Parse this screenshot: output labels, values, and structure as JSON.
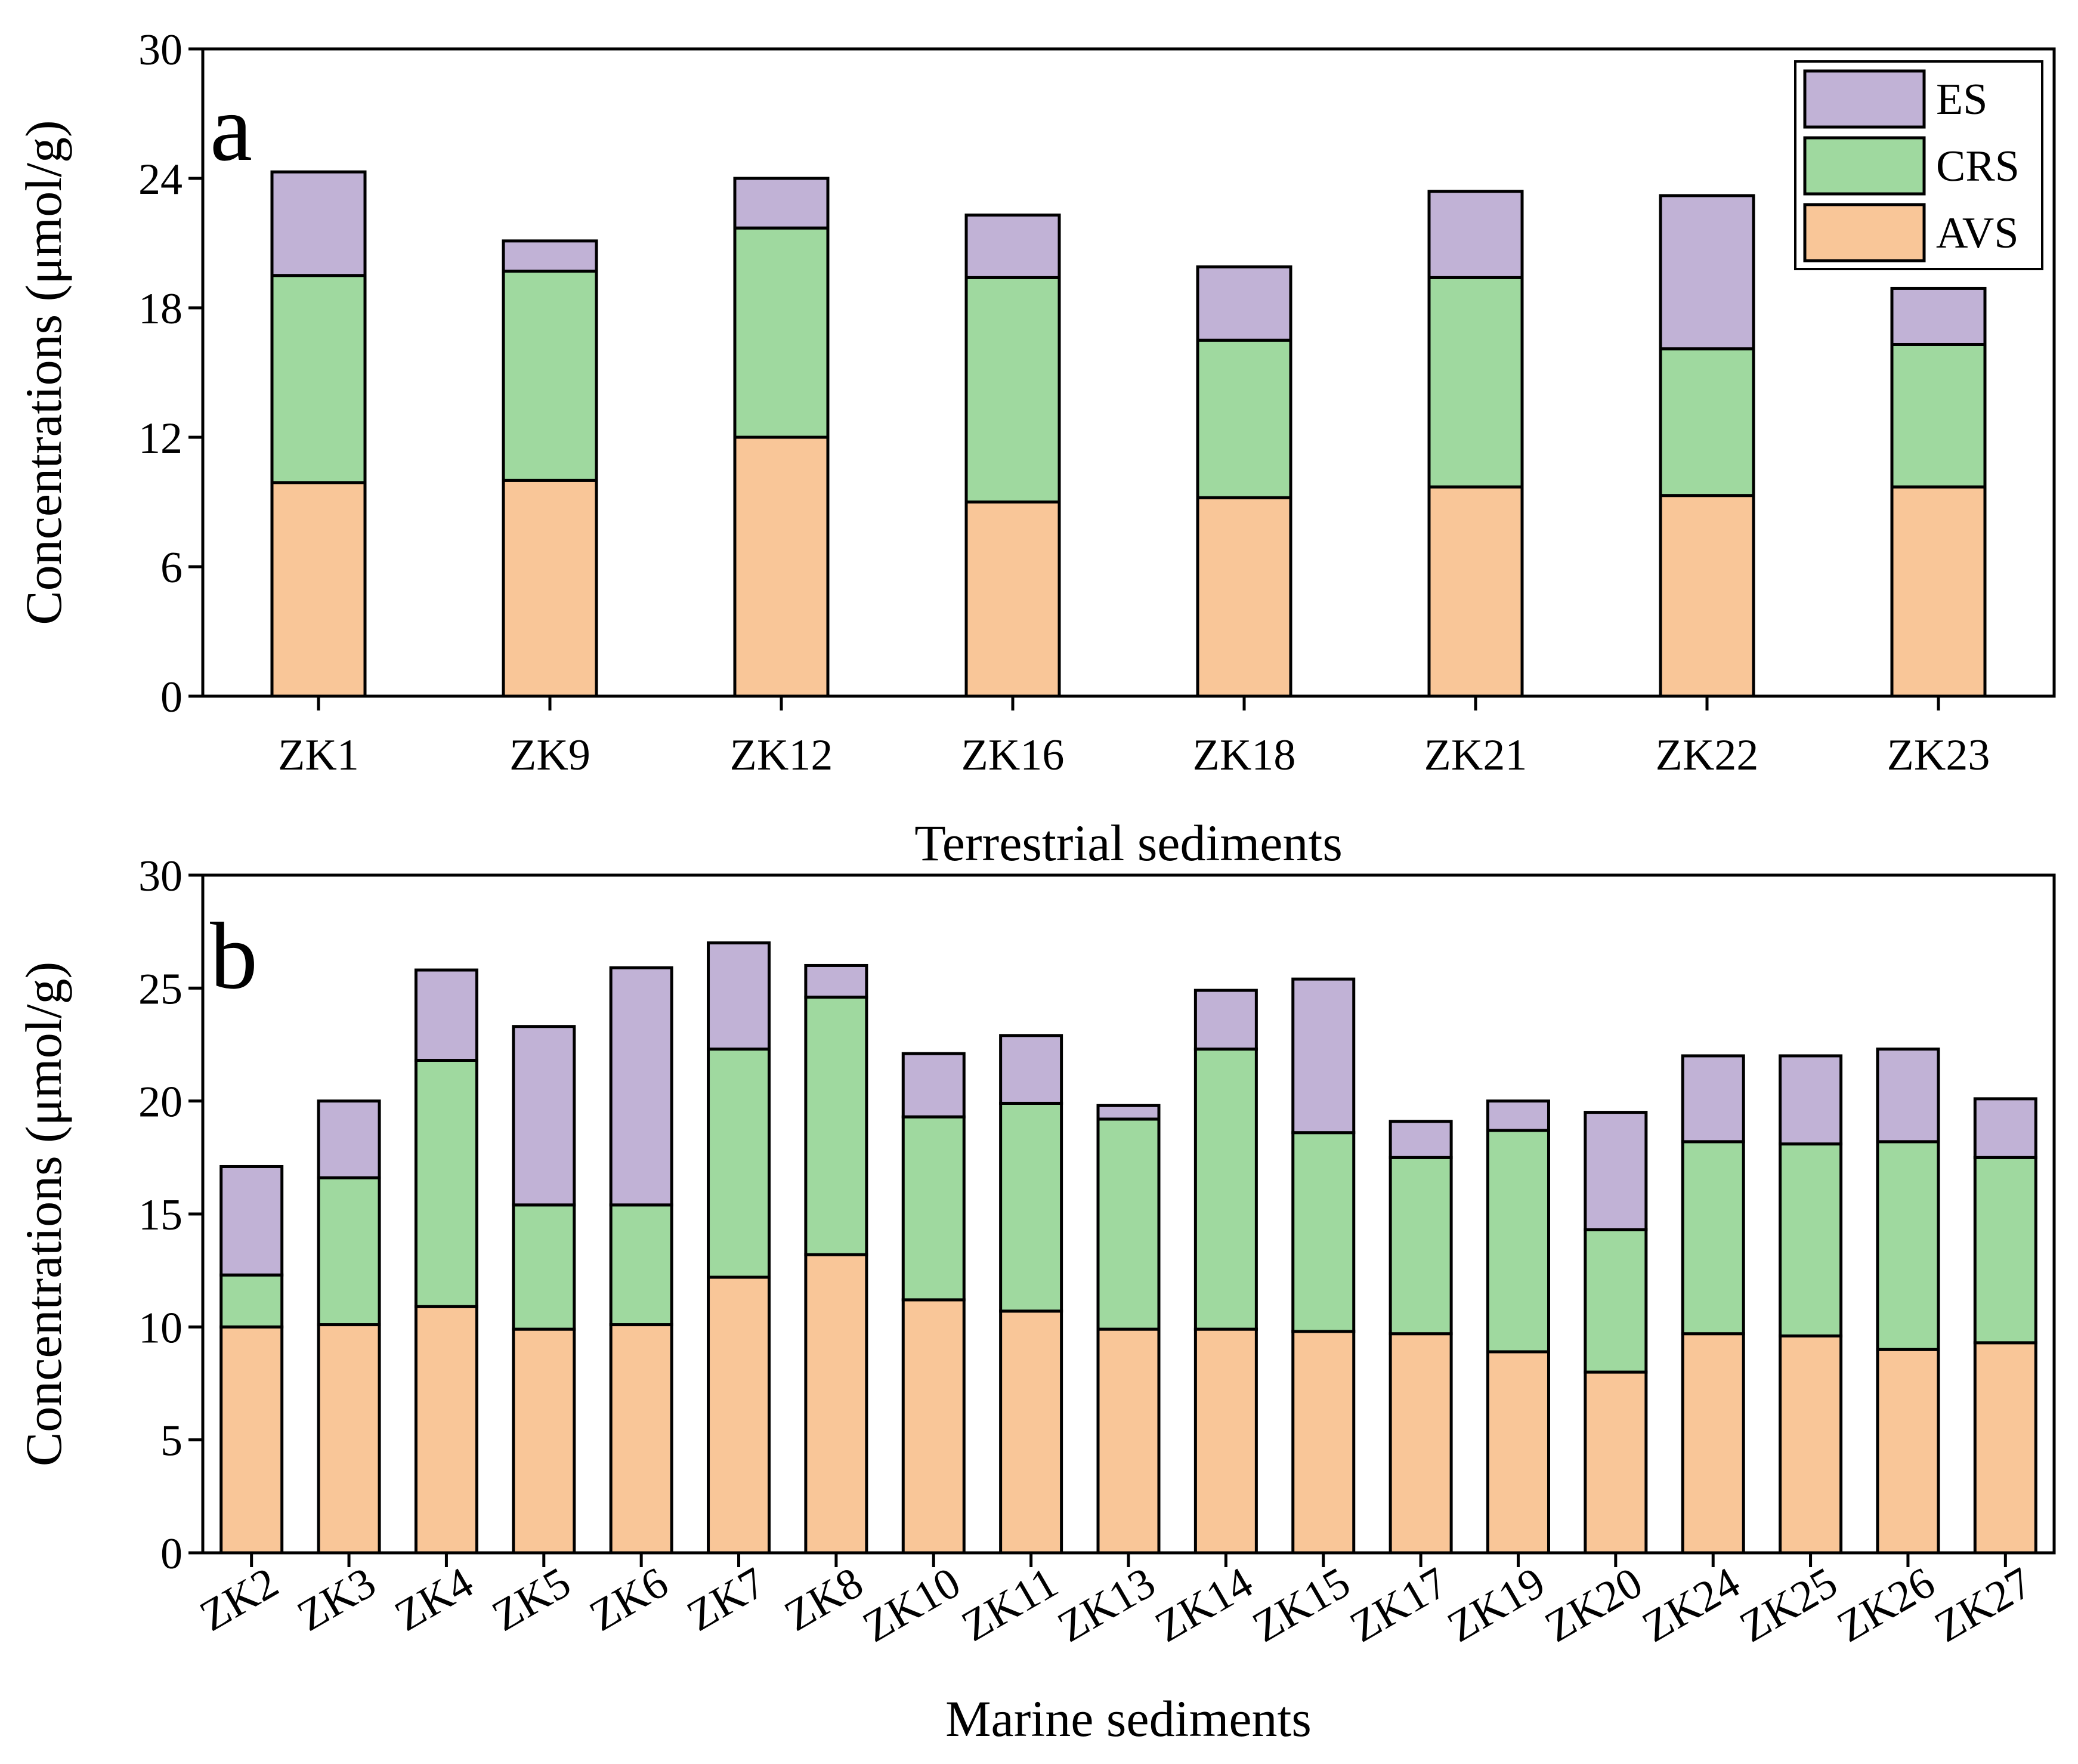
{
  "chart_data": [
    {
      "type": "bar",
      "stacked": true,
      "panel_label": "a",
      "title": "",
      "xlabel": "Terrestrial sediments",
      "ylabel": "Concentrations (μmol/g)",
      "ylim": [
        0,
        30
      ],
      "yticks": [
        0,
        6,
        12,
        18,
        24,
        30
      ],
      "categories": [
        "ZK1",
        "ZK9",
        "ZK12",
        "ZK16",
        "ZK18",
        "ZK21",
        "ZK22",
        "ZK23"
      ],
      "series": [
        {
          "name": "AVS",
          "color": "#f9c698",
          "values": [
            9.9,
            10.0,
            12.0,
            9.0,
            9.2,
            9.7,
            9.3,
            9.7
          ]
        },
        {
          "name": "CRS",
          "color": "#9fd99f",
          "values": [
            9.6,
            9.7,
            9.7,
            10.4,
            7.3,
            9.7,
            6.8,
            6.6
          ]
        },
        {
          "name": "ES",
          "color": "#c1b2d6",
          "values": [
            4.8,
            1.4,
            2.3,
            2.9,
            3.4,
            4.0,
            7.1,
            2.6
          ]
        }
      ],
      "legend": {
        "position": "top-right",
        "order": [
          "ES",
          "CRS",
          "AVS"
        ]
      },
      "grid": false
    },
    {
      "type": "bar",
      "stacked": true,
      "panel_label": "b",
      "title": "",
      "xlabel": "Marine sediments",
      "ylabel": "Concentrations (μmol/g)",
      "ylim": [
        0,
        30
      ],
      "yticks": [
        0,
        5,
        10,
        15,
        20,
        25,
        30
      ],
      "categories": [
        "ZK2",
        "ZK3",
        "ZK4",
        "ZK5",
        "ZK6",
        "ZK7",
        "ZK8",
        "ZK10",
        "ZK11",
        "ZK13",
        "ZK14",
        "ZK15",
        "ZK17",
        "ZK19",
        "ZK20",
        "ZK24",
        "ZK25",
        "ZK26",
        "ZK27"
      ],
      "series": [
        {
          "name": "AVS",
          "color": "#f9c698",
          "values": [
            10.0,
            10.1,
            10.9,
            9.9,
            10.1,
            12.2,
            13.2,
            11.2,
            10.7,
            9.9,
            9.9,
            9.8,
            9.7,
            8.9,
            8.0,
            9.7,
            9.6,
            9.0,
            9.3
          ]
        },
        {
          "name": "CRS",
          "color": "#9fd99f",
          "values": [
            2.3,
            6.5,
            10.9,
            5.5,
            5.3,
            10.1,
            11.4,
            8.1,
            9.2,
            9.3,
            12.4,
            8.8,
            7.8,
            9.8,
            6.3,
            8.5,
            8.5,
            9.2,
            8.2
          ]
        },
        {
          "name": "ES",
          "color": "#c1b2d6",
          "values": [
            4.8,
            3.4,
            4.0,
            7.9,
            10.5,
            4.7,
            1.4,
            2.8,
            3.0,
            0.6,
            2.6,
            6.8,
            1.6,
            1.3,
            5.2,
            3.8,
            3.9,
            4.1,
            2.6
          ]
        }
      ],
      "grid": false
    }
  ]
}
